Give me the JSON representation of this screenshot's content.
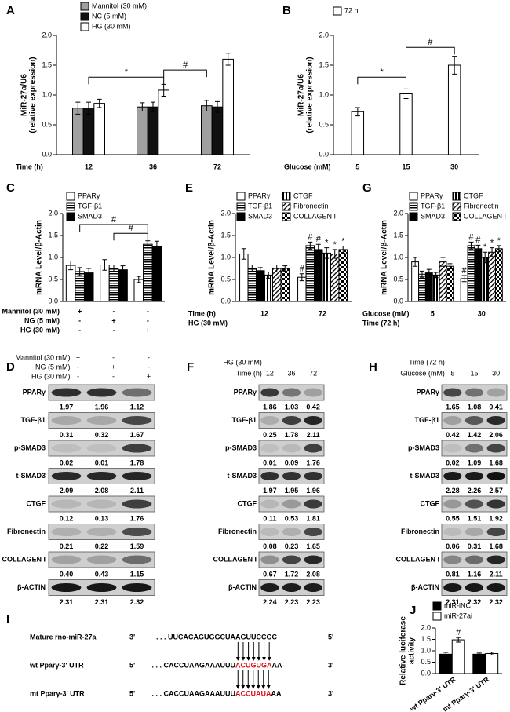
{
  "chart_data": [
    {
      "type": "bar",
      "panel": "A",
      "ylabel": [
        "MiR-27a/U6",
        "(relative expression)"
      ],
      "xlabel": "Time (h)",
      "categories": [
        12,
        36,
        72
      ],
      "ylim": [
        0,
        2
      ],
      "yticks": [
        {
          "value": 0,
          "label": "0.0"
        },
        0.5,
        {
          "value": 1,
          "label": "1.0"
        },
        1.5,
        {
          "value": 2,
          "label": "2.0"
        }
      ],
      "series": [
        {
          "name": "Mannitol (30 mM)",
          "color": "#a0a0a0",
          "values": [
            0.78,
            0.8,
            0.82
          ],
          "errors": [
            0.1,
            0.07,
            0.09
          ]
        },
        {
          "name": "NC (5 mM)",
          "color": "#111111",
          "values": [
            0.78,
            0.8,
            0.8
          ],
          "errors": [
            0.1,
            0.08,
            0.09
          ]
        },
        {
          "name": "HG (30 mM)",
          "color": "#ffffff",
          "values": [
            0.86,
            1.08,
            1.6
          ],
          "errors": [
            0.07,
            0.1,
            0.1
          ]
        }
      ],
      "annotations": [
        "*",
        "#"
      ]
    },
    {
      "type": "bar",
      "panel": "B",
      "ylabel": [
        "MiR-27a/U6",
        "(relative expression)"
      ],
      "xlabel": "Glucose (mM)",
      "categories": [
        5,
        15,
        30
      ],
      "ylim": [
        0,
        2
      ],
      "yticks": [
        {
          "value": 0,
          "label": "0.0"
        },
        0.5,
        {
          "value": 1,
          "label": "1.0"
        },
        1.5,
        {
          "value": 2,
          "label": "2.0"
        }
      ],
      "series": [
        {
          "name": "72 h",
          "color": "#ffffff",
          "values": [
            0.72,
            1.02,
            1.5
          ],
          "errors": [
            0.07,
            0.08,
            0.15
          ]
        }
      ],
      "annotations": [
        "*",
        "#"
      ]
    },
    {
      "type": "bar",
      "panel": "C",
      "ylabel": [
        "mRNA Level/β-Actin"
      ],
      "categories": [
        null,
        null,
        null
      ],
      "conditions": [
        {
          "label": "Mannitol (30 mM)",
          "values": [
            "+",
            "-",
            "-"
          ]
        },
        {
          "label": "NG (5 mM)",
          "values": [
            "-",
            "+",
            "-"
          ]
        },
        {
          "label": "HG (30 mM)",
          "values": [
            "-",
            "-",
            "+"
          ]
        }
      ],
      "ylim": [
        0,
        2
      ],
      "yticks": [
        {
          "value": 0,
          "label": "0.0"
        },
        0.5,
        {
          "value": 1,
          "label": "1.0"
        },
        1.5,
        {
          "value": 2,
          "label": "2.0"
        }
      ],
      "series": [
        {
          "name": "PPARγ",
          "color": "#ffffff",
          "values": [
            0.82,
            0.83,
            0.5
          ],
          "errors": [
            0.1,
            0.12,
            0.07
          ]
        },
        {
          "name": "TGF-β1",
          "color": "#000000",
          "pattern": "hstripe",
          "values": [
            0.68,
            0.75,
            1.3
          ],
          "errors": [
            0.09,
            0.08,
            0.08
          ]
        },
        {
          "name": "SMAD3",
          "color": "#000000",
          "values": [
            0.65,
            0.72,
            1.25
          ],
          "errors": [
            0.1,
            0.09,
            0.12
          ]
        }
      ],
      "annotations": [
        "#",
        "#"
      ]
    },
    {
      "type": "bar",
      "panel": "E",
      "ylabel": [
        "mRNA Level/β-Actin"
      ],
      "xlabel": "Time (h)",
      "xlabel2": "HG (30 mM)",
      "categories": [
        12,
        72
      ],
      "ylim": [
        0,
        2
      ],
      "yticks": [
        {
          "value": 0,
          "label": "0.0"
        },
        0.5,
        {
          "value": 1,
          "label": "1.0"
        },
        1.5,
        {
          "value": 2,
          "label": "2.0"
        }
      ],
      "series": [
        {
          "name": "PPARγ",
          "color": "#ffffff",
          "values": [
            1.08,
            0.55
          ],
          "errors": [
            0.12,
            0.08
          ],
          "annotations": [
            null,
            "#"
          ]
        },
        {
          "name": "TGF-β1",
          "color": "#000000",
          "pattern": "hstripe",
          "values": [
            0.75,
            1.27
          ],
          "errors": [
            0.08,
            0.08
          ],
          "annotations": [
            null,
            "#"
          ]
        },
        {
          "name": "SMAD3",
          "color": "#000000",
          "values": [
            0.7,
            1.18
          ],
          "errors": [
            0.07,
            0.12
          ],
          "annotations": [
            null,
            "#"
          ]
        },
        {
          "name": "CTGF",
          "color": "#000000",
          "pattern": "vstripe",
          "values": [
            0.6,
            1.1
          ],
          "errors": [
            0.07,
            0.12
          ],
          "annotations": [
            null,
            "*"
          ]
        },
        {
          "name": "Fibronectin",
          "color": "#000000",
          "pattern": "diag",
          "values": [
            0.75,
            1.08
          ],
          "errors": [
            0.08,
            0.1
          ],
          "annotations": [
            null,
            "*"
          ]
        },
        {
          "name": "COLLAGEN I",
          "color": "#000000",
          "pattern": "check",
          "values": [
            0.75,
            1.18
          ],
          "errors": [
            0.06,
            0.08
          ],
          "annotations": [
            null,
            "*"
          ]
        }
      ]
    },
    {
      "type": "bar",
      "panel": "G",
      "ylabel": [
        "mRNA Level/β-Actin"
      ],
      "xlabel": "Glucose (mM)",
      "xlabel2": "Time (72 h)",
      "categories": [
        5,
        30
      ],
      "ylim": [
        0,
        2
      ],
      "yticks": [
        {
          "value": 0,
          "label": "0.0"
        },
        0.5,
        {
          "value": 1,
          "label": "1.0"
        },
        1.5,
        {
          "value": 2,
          "label": "2.0"
        }
      ],
      "series": [
        {
          "name": "PPARγ",
          "color": "#ffffff",
          "values": [
            0.9,
            0.52
          ],
          "errors": [
            0.1,
            0.07
          ],
          "annotations": [
            null,
            "#"
          ]
        },
        {
          "name": "TGF-β1",
          "color": "#000000",
          "pattern": "hstripe",
          "values": [
            0.62,
            1.27
          ],
          "errors": [
            0.07,
            0.08
          ],
          "annotations": [
            null,
            "#"
          ]
        },
        {
          "name": "SMAD3",
          "color": "#000000",
          "values": [
            0.65,
            1.2
          ],
          "errors": [
            0.08,
            0.08
          ],
          "annotations": [
            null,
            "#"
          ]
        },
        {
          "name": "CTGF",
          "color": "#000000",
          "pattern": "vstripe",
          "values": [
            0.6,
            1.0
          ],
          "errors": [
            0.06,
            0.12
          ],
          "annotations": [
            null,
            "*"
          ]
        },
        {
          "name": "Fibronectin",
          "color": "#000000",
          "pattern": "diag",
          "values": [
            0.9,
            1.12
          ],
          "errors": [
            0.1,
            0.1
          ],
          "annotations": [
            null,
            "*"
          ]
        },
        {
          "name": "COLLAGEN I",
          "color": "#000000",
          "pattern": "check",
          "values": [
            0.8,
            1.2
          ],
          "errors": [
            0.06,
            0.07
          ],
          "annotations": [
            null,
            "*"
          ]
        }
      ]
    },
    {
      "type": "bar",
      "panel": "J",
      "ylabel": [
        "Relative luciferase",
        "activity"
      ],
      "categories": [
        "wt Pparγ-3' UTR",
        "mt Pparγ-3' UTR"
      ],
      "ylim": [
        0,
        2
      ],
      "yticks": [
        {
          "value": 0,
          "label": "0.0"
        },
        0.5,
        {
          "value": 1,
          "label": "1.0"
        },
        1.5,
        {
          "value": 2,
          "label": "2.0"
        }
      ],
      "series": [
        {
          "name": "miR-iNC",
          "color": "#000000",
          "values": [
            0.85,
            0.85
          ],
          "errors": [
            0.08,
            0.05
          ]
        },
        {
          "name": "miR-27ai",
          "color": "#ffffff",
          "values": [
            1.48,
            0.88
          ],
          "errors": [
            0.1,
            0.06
          ],
          "annotations": [
            "#",
            null
          ]
        }
      ]
    }
  ],
  "blots": [
    {
      "panel": "D",
      "header": [
        {
          "label": "Mannitol (30 mM)",
          "values": [
            "+",
            "-",
            "-"
          ]
        },
        {
          "label": "NG (5 mM)",
          "values": [
            "-",
            "+",
            "-"
          ]
        },
        {
          "label": "HG (30 mM)",
          "values": [
            "-",
            "-",
            "+"
          ]
        }
      ],
      "rows": [
        {
          "name": "PPARγ",
          "values": [
            "1.97",
            "1.96",
            "1.12"
          ]
        },
        {
          "name": "TGF-β1",
          "values": [
            "0.31",
            "0.32",
            "1.67"
          ]
        },
        {
          "name": "p-SMAD3",
          "values": [
            "0.02",
            "0.01",
            "1.78"
          ]
        },
        {
          "name": "t-SMAD3",
          "values": [
            "2.09",
            "2.08",
            "2.11"
          ]
        },
        {
          "name": "CTGF",
          "values": [
            "0.12",
            "0.13",
            "1.76"
          ]
        },
        {
          "name": "Fibronectin",
          "values": [
            "0.21",
            "0.22",
            "1.59"
          ]
        },
        {
          "name": "COLLAGEN I",
          "values": [
            "0.40",
            "0.43",
            "1.15"
          ]
        },
        {
          "name": "β-ACTIN",
          "values": [
            "2.31",
            "2.31",
            "2.32"
          ]
        }
      ]
    },
    {
      "panel": "F",
      "header": [
        {
          "label": "HG (30 mM)"
        },
        {
          "label": "Time (h)",
          "values": [
            "12",
            "36",
            "72"
          ]
        }
      ],
      "rows": [
        {
          "name": "PPARγ",
          "values": [
            "1.86",
            "1.03",
            "0.42"
          ]
        },
        {
          "name": "TGF-β1",
          "values": [
            "0.25",
            "1.78",
            "2.11"
          ]
        },
        {
          "name": "p-SMAD3",
          "values": [
            "0.01",
            "0.09",
            "1.76"
          ]
        },
        {
          "name": "t-SMAD3",
          "values": [
            "1.97",
            "1.95",
            "1.96"
          ]
        },
        {
          "name": "CTGF",
          "values": [
            "0.11",
            "0.53",
            "1.81"
          ]
        },
        {
          "name": "Fibronectin",
          "values": [
            "0.08",
            "0.23",
            "1.65"
          ]
        },
        {
          "name": "COLLAGEN I",
          "values": [
            "0.67",
            "1.72",
            "2.08"
          ]
        },
        {
          "name": "β-ACTIN",
          "values": [
            "2.24",
            "2.23",
            "2.23"
          ]
        }
      ]
    },
    {
      "panel": "H",
      "header": [
        {
          "label": "Time (72 h)"
        },
        {
          "label": "Glucose (mM)",
          "values": [
            "5",
            "15",
            "30"
          ]
        }
      ],
      "rows": [
        {
          "name": "PPARγ",
          "values": [
            "1.65",
            "1.08",
            "0.41"
          ]
        },
        {
          "name": "TGF-β1",
          "values": [
            "0.42",
            "1.42",
            "2.06"
          ]
        },
        {
          "name": "p-SMAD3",
          "values": [
            "0.02",
            "1.09",
            "1.68"
          ]
        },
        {
          "name": "t-SMAD3",
          "values": [
            "2.28",
            "2.26",
            "2.57"
          ]
        },
        {
          "name": "CTGF",
          "values": [
            "0.55",
            "1.51",
            "1.92"
          ]
        },
        {
          "name": "Fibronectin",
          "values": [
            "0.06",
            "0.31",
            "1.68"
          ]
        },
        {
          "name": "COLLAGEN I",
          "values": [
            "0.81",
            "1.16",
            "2.11"
          ]
        },
        {
          "name": "β-ACTIN",
          "values": [
            "2.31",
            "2.32",
            "2.32"
          ]
        }
      ]
    }
  ],
  "sequence": {
    "panel": "I",
    "rows": [
      {
        "label": "Mature rno-miR-27a",
        "start": "3'",
        "prefix": ". . . UUCACAGUGGCUA",
        "site": "AGUUCCG",
        "suffix": "C",
        "end": "5'",
        "site_color": "#000000"
      },
      {
        "label": "wt Pparγ-3' UTR",
        "start": "5'",
        "prefix": ". . . CACCUAAGAAAUUU",
        "site": "ACUGUGA",
        "suffix": "AA",
        "end": "3'",
        "site_color": "#e0101a"
      },
      {
        "label": "mt Pparγ-3' UTR",
        "start": "5'",
        "prefix": ". . . CACCUAAGAAAUUU",
        "site": "ACCUAUA",
        "suffix": "AA",
        "end": "3'",
        "site_color": "#e0101a"
      }
    ]
  }
}
